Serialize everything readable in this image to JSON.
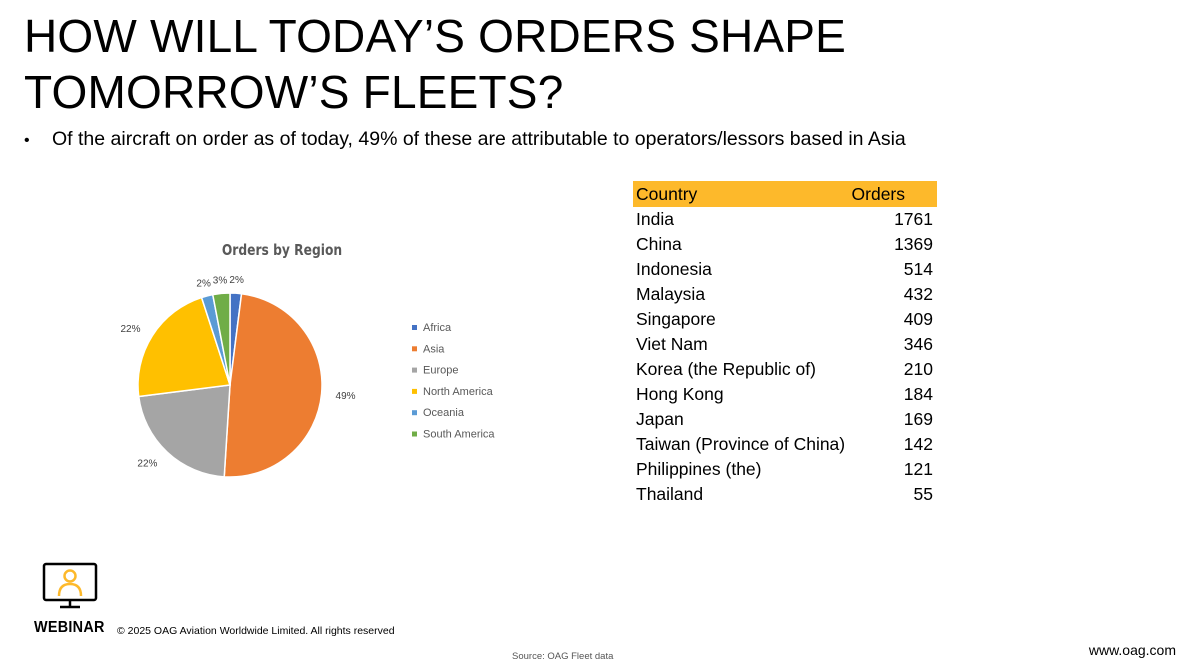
{
  "slide": {
    "title": "HOW WILL TODAY’S ORDERS SHAPE TOMORROW’S FLEETS?",
    "bullet": "Of the aircraft on order as of today, 49% of these are attributable to operators/lessors based in Asia",
    "bullet_symbol": "•"
  },
  "chart_data": {
    "type": "pie",
    "title": "Orders by Region",
    "slices": [
      {
        "name": "Africa",
        "value": 2,
        "label": "2%",
        "color": "#4472C4"
      },
      {
        "name": "Asia",
        "value": 49,
        "label": "49%",
        "color": "#ED7D31"
      },
      {
        "name": "Europe",
        "value": 22,
        "label": "22%",
        "color": "#A5A5A5"
      },
      {
        "name": "North America",
        "value": 22,
        "label": "22%",
        "color": "#FFC000"
      },
      {
        "name": "Oceania",
        "value": 2,
        "label": "2%",
        "color": "#5B9BD5"
      },
      {
        "name": "South America",
        "value": 3,
        "label": "3%",
        "color": "#70AD47"
      }
    ],
    "legend_position": "right"
  },
  "table": {
    "headers": [
      "Country",
      "Orders"
    ],
    "header_color": "#FDB92B",
    "rows": [
      [
        "India",
        "1761"
      ],
      [
        "China",
        "1369"
      ],
      [
        "Indonesia",
        "514"
      ],
      [
        "Malaysia",
        "432"
      ],
      [
        "Singapore",
        "409"
      ],
      [
        "Viet Nam",
        "346"
      ],
      [
        "Korea (the Republic of)",
        "210"
      ],
      [
        "Hong Kong",
        "184"
      ],
      [
        "Japan",
        "169"
      ],
      [
        "Taiwan (Province of China)",
        "142"
      ],
      [
        "Philippines (the)",
        "121"
      ],
      [
        "Thailand",
        "55"
      ]
    ]
  },
  "footer": {
    "logo_icon": "webinar-monitor-icon",
    "logo_label": "WEBINAR",
    "logo_color": "#FDB92B",
    "copyright": "© 2025 OAG Aviation Worldwide Limited. All rights reserved",
    "source": "Source:  OAG Fleet data",
    "website": "www.oag.com"
  }
}
